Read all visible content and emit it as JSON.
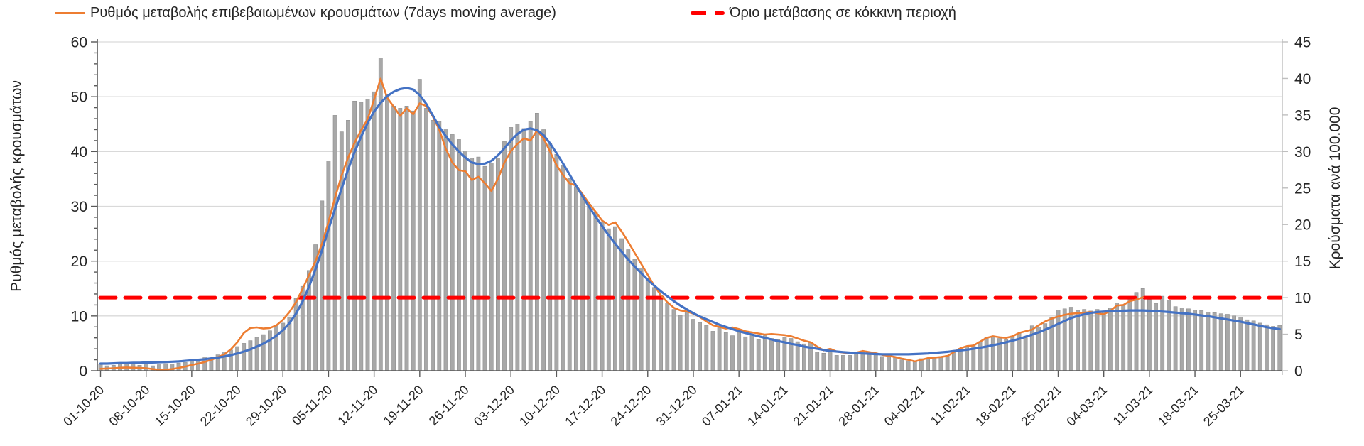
{
  "legend": {
    "items": [
      {
        "label": "Ρυθμός μεταβολής επιβεβαιωμένων κρουσμάτων (7days moving average)",
        "series": "moving-average-line",
        "color": "#ED7D31",
        "style": "solid"
      },
      {
        "label": "Όριο μετάβασης σε κόκκινη περιοχή",
        "series": "threshold-line",
        "color": "#FF0000",
        "style": "dashed"
      }
    ]
  },
  "y_axis_left": {
    "title": "Ρυθμός μεταβολής κρουσμάτων",
    "min": 0,
    "max": 60,
    "tick_step": 10,
    "minor_tick_step": 2,
    "tick_labels": [
      "0",
      "10",
      "20",
      "30",
      "40",
      "50",
      "60"
    ]
  },
  "y_axis_right": {
    "title": "Κρούσματα ανά 100.000",
    "min": 0,
    "max": 45,
    "tick_step": 5,
    "tick_labels": [
      "0",
      "5",
      "10",
      "15",
      "20",
      "25",
      "30",
      "35",
      "40",
      "45"
    ]
  },
  "chart_data": {
    "type": "combo",
    "title": "",
    "grid": true,
    "legend_position": "top",
    "ylim_left": [
      0,
      60
    ],
    "ylim_right": [
      0,
      45
    ],
    "x": {
      "unit": "day",
      "days": 182,
      "start_label": "01-10-20",
      "tick_every_days": 7,
      "tick_labels": [
        "01-10-20",
        "08-10-20",
        "15-10-20",
        "22-10-20",
        "29-10-20",
        "05-11-20",
        "12-11-20",
        "19-11-20",
        "26-11-20",
        "03-12-20",
        "10-12-20",
        "17-12-20",
        "24-12-20",
        "31-12-20",
        "07-01-21",
        "14-01-21",
        "21-01-21",
        "28-01-21",
        "04-02-21",
        "11-02-21",
        "18-02-21",
        "25-02-21",
        "04-03-21",
        "11-03-21",
        "18-03-21",
        "25-03-21"
      ]
    },
    "series": [
      {
        "name": "daily-values-bars",
        "type": "bar",
        "axis": "left",
        "color": "#a8a8a8",
        "values": [
          1.2,
          0.9,
          1.0,
          1.2,
          1.4,
          1.1,
          1.0,
          1.1,
          0.9,
          1.1,
          1.3,
          1.2,
          1.4,
          1.5,
          1.9,
          1.7,
          2.4,
          2.1,
          2.9,
          3.3,
          3.8,
          4.4,
          5.0,
          5.5,
          6.1,
          6.6,
          7.3,
          8.3,
          8.7,
          9.8,
          13.2,
          15.4,
          18.3,
          23.0,
          31.0,
          38.3,
          46.6,
          43.6,
          45.7,
          49.2,
          49.0,
          49.6,
          50.9,
          57.1,
          50.5,
          48.3,
          47.9,
          48.3,
          47.4,
          53.2,
          47.9,
          45.7,
          45.5,
          44.0,
          43.1,
          42.2,
          40.1,
          38.8,
          39.0,
          37.3,
          37.9,
          38.8,
          41.8,
          44.4,
          45.0,
          44.2,
          45.5,
          47.0,
          44.0,
          41.5,
          39.5,
          37.4,
          35.1,
          33.6,
          31.9,
          30.4,
          28.9,
          27.2,
          25.9,
          26.3,
          24.1,
          22.1,
          20.3,
          18.6,
          16.8,
          15.2,
          13.8,
          12.4,
          11.2,
          10.1,
          10.7,
          9.4,
          8.8,
          8.3,
          7.2,
          7.9,
          7.0,
          6.4,
          7.0,
          6.2,
          6.6,
          5.7,
          6.4,
          5.9,
          5.7,
          6.1,
          5.9,
          5.3,
          4.9,
          5.1,
          3.4,
          3.2,
          3.9,
          2.8,
          2.8,
          2.8,
          3.4,
          3.6,
          3.0,
          3.2,
          2.6,
          2.8,
          2.4,
          2.0,
          1.8,
          1.8,
          2.2,
          2.2,
          2.4,
          2.5,
          2.8,
          3.4,
          4.1,
          4.5,
          4.7,
          5.3,
          6.1,
          6.3,
          5.9,
          5.7,
          6.1,
          6.9,
          6.3,
          8.2,
          8.0,
          8.6,
          9.7,
          11.1,
          11.3,
          11.6,
          11.0,
          11.2,
          10.9,
          11.2,
          10.8,
          11.5,
          12.4,
          11.9,
          13.5,
          14.3,
          15.0,
          13.0,
          12.3,
          13.6,
          12.9,
          11.7,
          11.5,
          11.3,
          11.1,
          11.0,
          10.7,
          10.6,
          10.4,
          10.3,
          10.0,
          9.8,
          9.3,
          9.1,
          8.7,
          8.4,
          8.1,
          8.3
        ]
      },
      {
        "name": "Ρυθμός μεταβολής επιβεβαιωμένων κρουσμάτων (7days moving average)",
        "type": "line",
        "axis": "left",
        "color": "#ED7D31",
        "values": [
          0.35,
          0.4,
          0.45,
          0.55,
          0.6,
          0.55,
          0.5,
          0.45,
          0.3,
          0.2,
          0.2,
          0.3,
          0.5,
          0.75,
          1.05,
          1.3,
          1.6,
          2.0,
          2.45,
          3.0,
          3.9,
          5.2,
          6.9,
          7.8,
          7.9,
          7.7,
          7.8,
          8.3,
          9.3,
          10.7,
          12.5,
          14.9,
          17.4,
          20.0,
          23.2,
          27.2,
          31.6,
          35.6,
          38.9,
          41.6,
          43.9,
          45.9,
          49.5,
          53.3,
          49.8,
          48.2,
          46.5,
          47.9,
          46.8,
          48.8,
          48.3,
          46.4,
          44.0,
          40.5,
          38.0,
          36.6,
          36.4,
          34.8,
          35.4,
          34.2,
          32.8,
          35.0,
          38.0,
          40.1,
          41.4,
          42.4,
          42.0,
          43.8,
          42.4,
          40.0,
          37.5,
          35.7,
          34.2,
          33.8,
          32.2,
          30.5,
          29.0,
          27.4,
          26.6,
          27.1,
          25.4,
          23.5,
          21.5,
          19.5,
          17.5,
          15.5,
          13.8,
          12.5,
          11.5,
          11.0,
          10.8,
          10.4,
          9.8,
          9.0,
          8.3,
          8.0,
          7.7,
          7.9,
          7.6,
          7.2,
          7.0,
          6.8,
          6.6,
          6.7,
          6.6,
          6.5,
          6.3,
          5.9,
          5.5,
          5.2,
          4.4,
          3.7,
          4.0,
          3.5,
          3.3,
          3.2,
          3.3,
          3.6,
          3.4,
          3.2,
          2.9,
          2.7,
          2.5,
          2.2,
          2.0,
          1.7,
          2.0,
          2.3,
          2.4,
          2.5,
          2.7,
          3.4,
          4.1,
          4.5,
          4.6,
          5.3,
          6.0,
          6.3,
          6.1,
          6.0,
          6.3,
          6.9,
          7.2,
          7.5,
          8.3,
          9.0,
          9.5,
          9.9,
          10.2,
          10.4,
          10.5,
          10.6,
          10.7,
          10.5,
          10.3,
          10.9,
          11.9,
          12.0,
          12.7,
          13.0,
          13.4
        ]
      },
      {
        "name": "trend-line",
        "type": "line",
        "axis": "left",
        "color": "#4472C4",
        "values": [
          1.3,
          1.3,
          1.35,
          1.4,
          1.4,
          1.45,
          1.45,
          1.5,
          1.5,
          1.55,
          1.6,
          1.65,
          1.7,
          1.8,
          1.9,
          2.0,
          2.1,
          2.25,
          2.4,
          2.6,
          2.85,
          3.15,
          3.5,
          3.9,
          4.4,
          4.95,
          5.6,
          6.4,
          7.4,
          8.7,
          10.4,
          12.6,
          15.3,
          18.5,
          22.0,
          25.8,
          29.5,
          33.2,
          36.7,
          39.9,
          42.7,
          45.2,
          47.3,
          48.9,
          50.1,
          50.9,
          51.4,
          51.6,
          51.3,
          50.3,
          48.7,
          46.6,
          44.5,
          42.8,
          41.3,
          40.0,
          38.9,
          38.0,
          37.7,
          37.8,
          38.3,
          39.3,
          40.6,
          42.0,
          43.2,
          44.0,
          44.2,
          43.9,
          43.0,
          41.5,
          39.7,
          37.8,
          35.8,
          33.8,
          31.8,
          29.9,
          28.1,
          26.4,
          24.7,
          23.2,
          21.7,
          20.3,
          19.0,
          17.8,
          16.6,
          15.5,
          14.5,
          13.6,
          12.7,
          11.9,
          11.2,
          10.5,
          9.9,
          9.4,
          8.9,
          8.4,
          8.0,
          7.6,
          7.2,
          6.9,
          6.6,
          6.3,
          6.0,
          5.7,
          5.4,
          5.2,
          4.9,
          4.7,
          4.4,
          4.2,
          4.0,
          3.8,
          3.6,
          3.5,
          3.4,
          3.3,
          3.2,
          3.15,
          3.1,
          3.05,
          3.0,
          3.0,
          3.0,
          3.0,
          3.0,
          3.05,
          3.1,
          3.15,
          3.25,
          3.35,
          3.45,
          3.6,
          3.7,
          3.85,
          4.0,
          4.2,
          4.4,
          4.65,
          4.9,
          5.2,
          5.5,
          5.8,
          6.2,
          6.6,
          7.0,
          7.5,
          8.0,
          8.55,
          9.1,
          9.6,
          10.0,
          10.3,
          10.55,
          10.7,
          10.8,
          10.85,
          10.9,
          10.95,
          11.0,
          11.0,
          11.0,
          10.95,
          10.9,
          10.8,
          10.7,
          10.6,
          10.5,
          10.4,
          10.25,
          10.1,
          9.95,
          9.75,
          9.55,
          9.35,
          9.15,
          8.95,
          8.7,
          8.45,
          8.2,
          7.95,
          7.75,
          7.6
        ]
      },
      {
        "name": "Όριο μετάβασης σε κόκκινη περιοχή",
        "type": "threshold-line",
        "axis": "right",
        "value": 10,
        "value_left_axis": 13.33,
        "color": "#FF0000",
        "style": "dashed"
      }
    ]
  },
  "colors": {
    "background": "#ffffff",
    "bar": "#a8a8a8",
    "bar_edge": "#8f8f8f",
    "moving_average": "#ED7D31",
    "trend": "#4472C4",
    "threshold": "#FF0000",
    "gridline": "#d9d9d9",
    "axis": "#595959",
    "right_axis": "#bfbfbf",
    "text": "#262626"
  }
}
